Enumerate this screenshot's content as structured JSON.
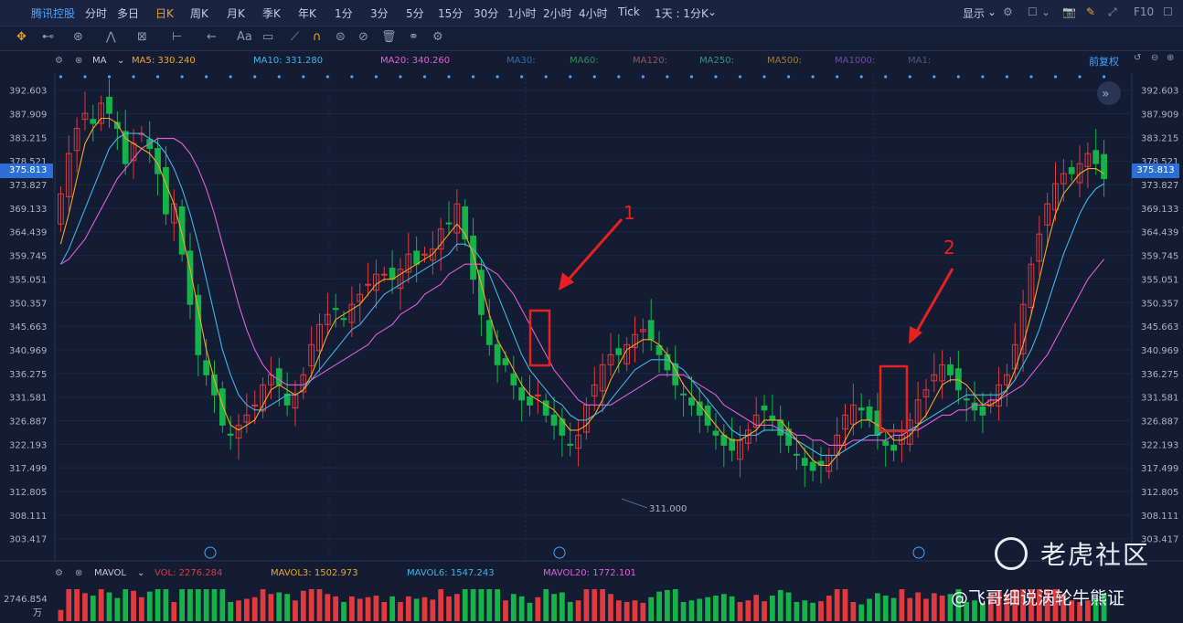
{
  "topbar": {
    "stock": "腾讯控股",
    "periods": [
      "分时",
      "多日",
      "日K",
      "周K",
      "月K",
      "季K",
      "年K",
      "1分",
      "3分",
      "5分",
      "15分",
      "30分",
      "1小时",
      "2小时",
      "4小时",
      "Tick"
    ],
    "active_period": "日K",
    "range_selector": "1天 : 1分K",
    "display_label": "显示",
    "f10_label": "F10"
  },
  "toolbar": {
    "tools": [
      "crosshair-icon",
      "line-icon",
      "pen-icon",
      "pattern-icon",
      "measure-icon",
      "range-icon",
      "arrow-icon",
      "text-icon",
      "note-icon",
      "ruler-icon",
      "magnet-icon",
      "lock-icon",
      "hide-icon",
      "trash-icon",
      "link-icon",
      "settings-icon"
    ],
    "text_tool_label": "Aa"
  },
  "legend": {
    "indicator": "MA",
    "ma5": "MA5: 330.240",
    "ma10": "MA10: 331.280",
    "ma20": "MA20: 340.260",
    "inactive": [
      "MA30:",
      "MA60:",
      "MA120:",
      "MA250:",
      "MA500:",
      "MA1000:",
      "MA1:"
    ],
    "adjust": "前复权",
    "colors": {
      "ma5": "#f5a623",
      "ma10": "#3fb6e8",
      "ma20": "#e25fd8",
      "up": "#e0393e",
      "down": "#15b34a"
    }
  },
  "chart_data": {
    "type": "candlestick",
    "title": "",
    "ylim": [
      299.0,
      396.0
    ],
    "y_ticks": [
      392.603,
      387.909,
      383.215,
      378.521,
      373.827,
      369.133,
      364.439,
      359.745,
      355.051,
      350.357,
      345.663,
      340.969,
      336.275,
      331.581,
      326.887,
      322.193,
      317.499,
      312.805,
      308.111,
      303.417
    ],
    "last_price": "375.813",
    "min_label": "311.000",
    "annotations": [
      "1",
      "2"
    ],
    "close": [
      372,
      380,
      385,
      388,
      386,
      390,
      388,
      385,
      378,
      382,
      384,
      381,
      376,
      368,
      370,
      360,
      350,
      340,
      336,
      332,
      326,
      324,
      326,
      328,
      330,
      334,
      336,
      334,
      330,
      332,
      336,
      342,
      346,
      348,
      349,
      347,
      350,
      352,
      354,
      356,
      356,
      355,
      357,
      360,
      358,
      360,
      361,
      365,
      366,
      370,
      363,
      355,
      348,
      342,
      338,
      338,
      334,
      331,
      330,
      332,
      328,
      326,
      324,
      322,
      324,
      330,
      334,
      338,
      340,
      340,
      342,
      344,
      345,
      343,
      340,
      337,
      334,
      332,
      330,
      328,
      326,
      324,
      322,
      321,
      323,
      325,
      328,
      329,
      327,
      324,
      322,
      320,
      318,
      317,
      318,
      320,
      324,
      328,
      330,
      329,
      327,
      324,
      322,
      321,
      324,
      327,
      331,
      333,
      336,
      338,
      336,
      333,
      331,
      329,
      328,
      331,
      334,
      336,
      342,
      350,
      358,
      364,
      370,
      374,
      376,
      376,
      378,
      380,
      378,
      375
    ],
    "ma5": [
      362,
      368,
      375,
      382,
      385,
      387,
      387,
      386,
      383,
      382,
      381,
      380,
      378,
      374,
      370,
      364,
      357,
      349,
      341,
      335,
      330,
      326,
      325,
      326,
      327,
      330,
      333,
      334,
      333,
      332,
      333,
      336,
      340,
      344,
      347,
      348,
      349,
      350,
      352,
      354,
      355,
      355,
      356,
      357,
      358,
      359,
      360,
      362,
      364,
      366,
      364,
      360,
      354,
      348,
      343,
      340,
      337,
      334,
      332,
      331,
      330,
      329,
      327,
      325,
      325,
      326,
      328,
      331,
      335,
      338,
      341,
      342,
      343,
      343,
      342,
      340,
      337,
      334,
      332,
      330,
      328,
      326,
      324,
      323,
      323,
      324,
      325,
      327,
      327,
      327,
      325,
      323,
      321,
      319,
      318,
      318,
      320,
      323,
      326,
      327,
      327,
      326,
      325,
      323,
      323,
      324,
      326,
      328,
      331,
      334,
      335,
      335,
      334,
      332,
      330,
      330,
      331,
      333,
      337,
      342,
      348,
      355,
      362,
      368,
      372,
      374,
      376,
      377,
      377,
      376
    ],
    "ma10": [
      358,
      361,
      365,
      369,
      373,
      377,
      381,
      383,
      384,
      384,
      384,
      383,
      382,
      380,
      377,
      373,
      368,
      362,
      355,
      348,
      341,
      336,
      332,
      330,
      329,
      329,
      330,
      331,
      332,
      332,
      333,
      335,
      337,
      339,
      341,
      343,
      345,
      346,
      348,
      350,
      352,
      353,
      354,
      355,
      356,
      357,
      358,
      359,
      360,
      362,
      362,
      361,
      359,
      356,
      352,
      348,
      344,
      340,
      337,
      335,
      333,
      331,
      330,
      328,
      327,
      327,
      328,
      329,
      331,
      333,
      335,
      337,
      338,
      339,
      339,
      339,
      338,
      337,
      335,
      333,
      331,
      329,
      327,
      325,
      324,
      324,
      324,
      325,
      325,
      325,
      324,
      323,
      322,
      321,
      320,
      320,
      320,
      321,
      322,
      323,
      324,
      324,
      325,
      325,
      325,
      325,
      326,
      327,
      328,
      329,
      330,
      331,
      332,
      332,
      332,
      332,
      332,
      333,
      335,
      338,
      341,
      345,
      350,
      355,
      360,
      364,
      368,
      371,
      373,
      374
    ],
    "ma20": [
      358,
      359,
      361,
      363,
      366,
      369,
      372,
      375,
      377,
      379,
      381,
      382,
      383,
      383,
      383,
      382,
      380,
      377,
      373,
      368,
      362,
      356,
      350,
      345,
      341,
      338,
      336,
      335,
      334,
      334,
      334,
      335,
      336,
      337,
      338,
      339,
      340,
      341,
      342,
      344,
      345,
      346,
      348,
      349,
      350,
      352,
      353,
      354,
      356,
      357,
      358,
      358,
      358,
      357,
      356,
      354,
      352,
      349,
      346,
      343,
      340,
      337,
      335,
      333,
      331,
      330,
      330,
      330,
      330,
      331,
      332,
      333,
      334,
      335,
      336,
      336,
      336,
      336,
      335,
      334,
      333,
      332,
      330,
      329,
      328,
      327,
      326,
      326,
      326,
      325,
      325,
      324,
      324,
      323,
      323,
      322,
      322,
      322,
      323,
      323,
      323,
      323,
      323,
      324,
      324,
      325,
      325,
      326,
      327,
      328,
      328,
      329,
      329,
      330,
      330,
      331,
      331,
      332,
      333,
      334,
      336,
      338,
      340,
      343,
      346,
      349,
      352,
      355,
      357,
      359
    ]
  },
  "volume": {
    "indicator": "MAVOL",
    "vol": "VOL: 2276.284",
    "mavol3": "MAVOL3: 1502.973",
    "mavol6": "MAVOL6: 1547.243",
    "mavol20": "MAVOL20: 1772.101",
    "axis_label": "2746.854",
    "unit": "万",
    "colors": {
      "vol": "#e0393e",
      "mavol3": "#f5a623",
      "mavol6": "#3fb6e8",
      "mavol20": "#e25fd8"
    }
  },
  "watermark": {
    "brand": "老虎社区",
    "author": "@飞哥细说涡轮牛熊证"
  }
}
